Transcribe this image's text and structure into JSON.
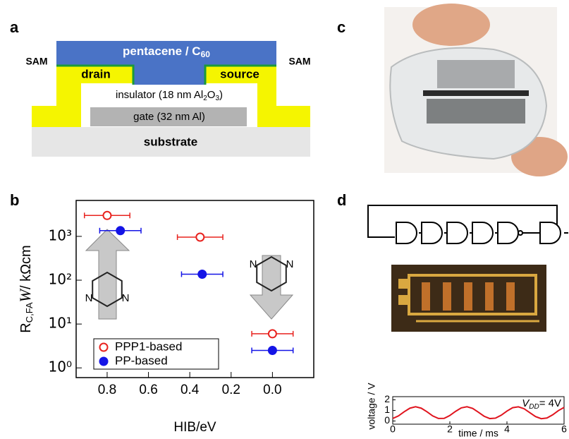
{
  "panel_labels": [
    "a",
    "b",
    "c",
    "d"
  ],
  "diagram": {
    "pentacene": [
      "pentacene / C",
      "60"
    ],
    "sam_left": "SAM",
    "sam_right": "SAM",
    "drain": "drain",
    "source": "source",
    "insulator": [
      "insulator (18 nm Al",
      "2",
      "O",
      "3",
      ")"
    ],
    "gate": "gate (32 nm Al)",
    "substrate": "substrate"
  },
  "molecules": [
    [
      "N",
      "N"
    ],
    [
      "N",
      "N"
    ]
  ],
  "chart_data": [
    {
      "type": "scatter",
      "xlabel": "HIB/eV",
      "ylabel": [
        "R",
        "C,FA",
        "W",
        "/ kΩcm"
      ],
      "xlim": [
        0.95,
        -0.2
      ],
      "xticks": [
        0.8,
        0.6,
        0.4,
        0.2,
        {
          "value": 0,
          "label": "0.0"
        }
      ],
      "ylim": [
        0.6,
        6600
      ],
      "yticks": [
        {
          "value": 1,
          "label": "10⁰"
        },
        {
          "value": 10,
          "label": "10¹"
        },
        {
          "value": 100,
          "label": "10²"
        },
        {
          "value": 1000,
          "label": "10³"
        }
      ],
      "log_y": true,
      "legend": "lower left",
      "series": [
        {
          "name": "PPP1-based",
          "color": "#e8231f",
          "filled": false,
          "x": [
            0.8,
            0.35,
            0.0
          ],
          "xerr": [
            0.11,
            0.11,
            0.1
          ],
          "values": [
            3000,
            960,
            6.0
          ]
        },
        {
          "name": "PP-based",
          "color": "#1414e6",
          "filled": true,
          "x": [
            0.736,
            0.34,
            0.0
          ],
          "xerr": [
            0.1,
            0.1,
            0.1
          ],
          "values": [
            1350,
            137,
            2.5
          ]
        }
      ]
    },
    {
      "type": "line",
      "xlabel": "time / ms",
      "ylabel": "voltage / V",
      "annotation": [
        "V",
        "DD",
        "= 4V"
      ],
      "xlim": [
        0,
        6
      ],
      "xticks": [
        0,
        2,
        4,
        6
      ],
      "ylim": [
        -0.3,
        2.3
      ],
      "yticks": [
        0,
        1,
        2
      ],
      "series": [
        {
          "color": "#e0141e",
          "x": [
            0,
            0.2,
            0.4,
            0.6,
            0.8,
            1.0,
            1.2,
            1.4,
            1.6,
            1.8,
            2.0,
            2.2,
            2.4,
            2.6,
            2.8,
            3.0,
            3.2,
            3.4,
            3.6,
            3.8,
            4.0,
            4.2,
            4.4,
            4.6,
            4.8,
            5.0,
            5.2,
            5.4,
            5.6,
            5.8,
            6.0
          ],
          "values": [
            0.24,
            0.48,
            0.87,
            1.21,
            1.35,
            1.21,
            0.87,
            0.48,
            0.24,
            0.25,
            0.52,
            0.91,
            1.24,
            1.35,
            1.19,
            0.83,
            0.45,
            0.23,
            0.27,
            0.55,
            0.94,
            1.26,
            1.34,
            1.16,
            0.79,
            0.42,
            0.22,
            0.28,
            0.58,
            0.98,
            1.28
          ]
        }
      ]
    }
  ]
}
